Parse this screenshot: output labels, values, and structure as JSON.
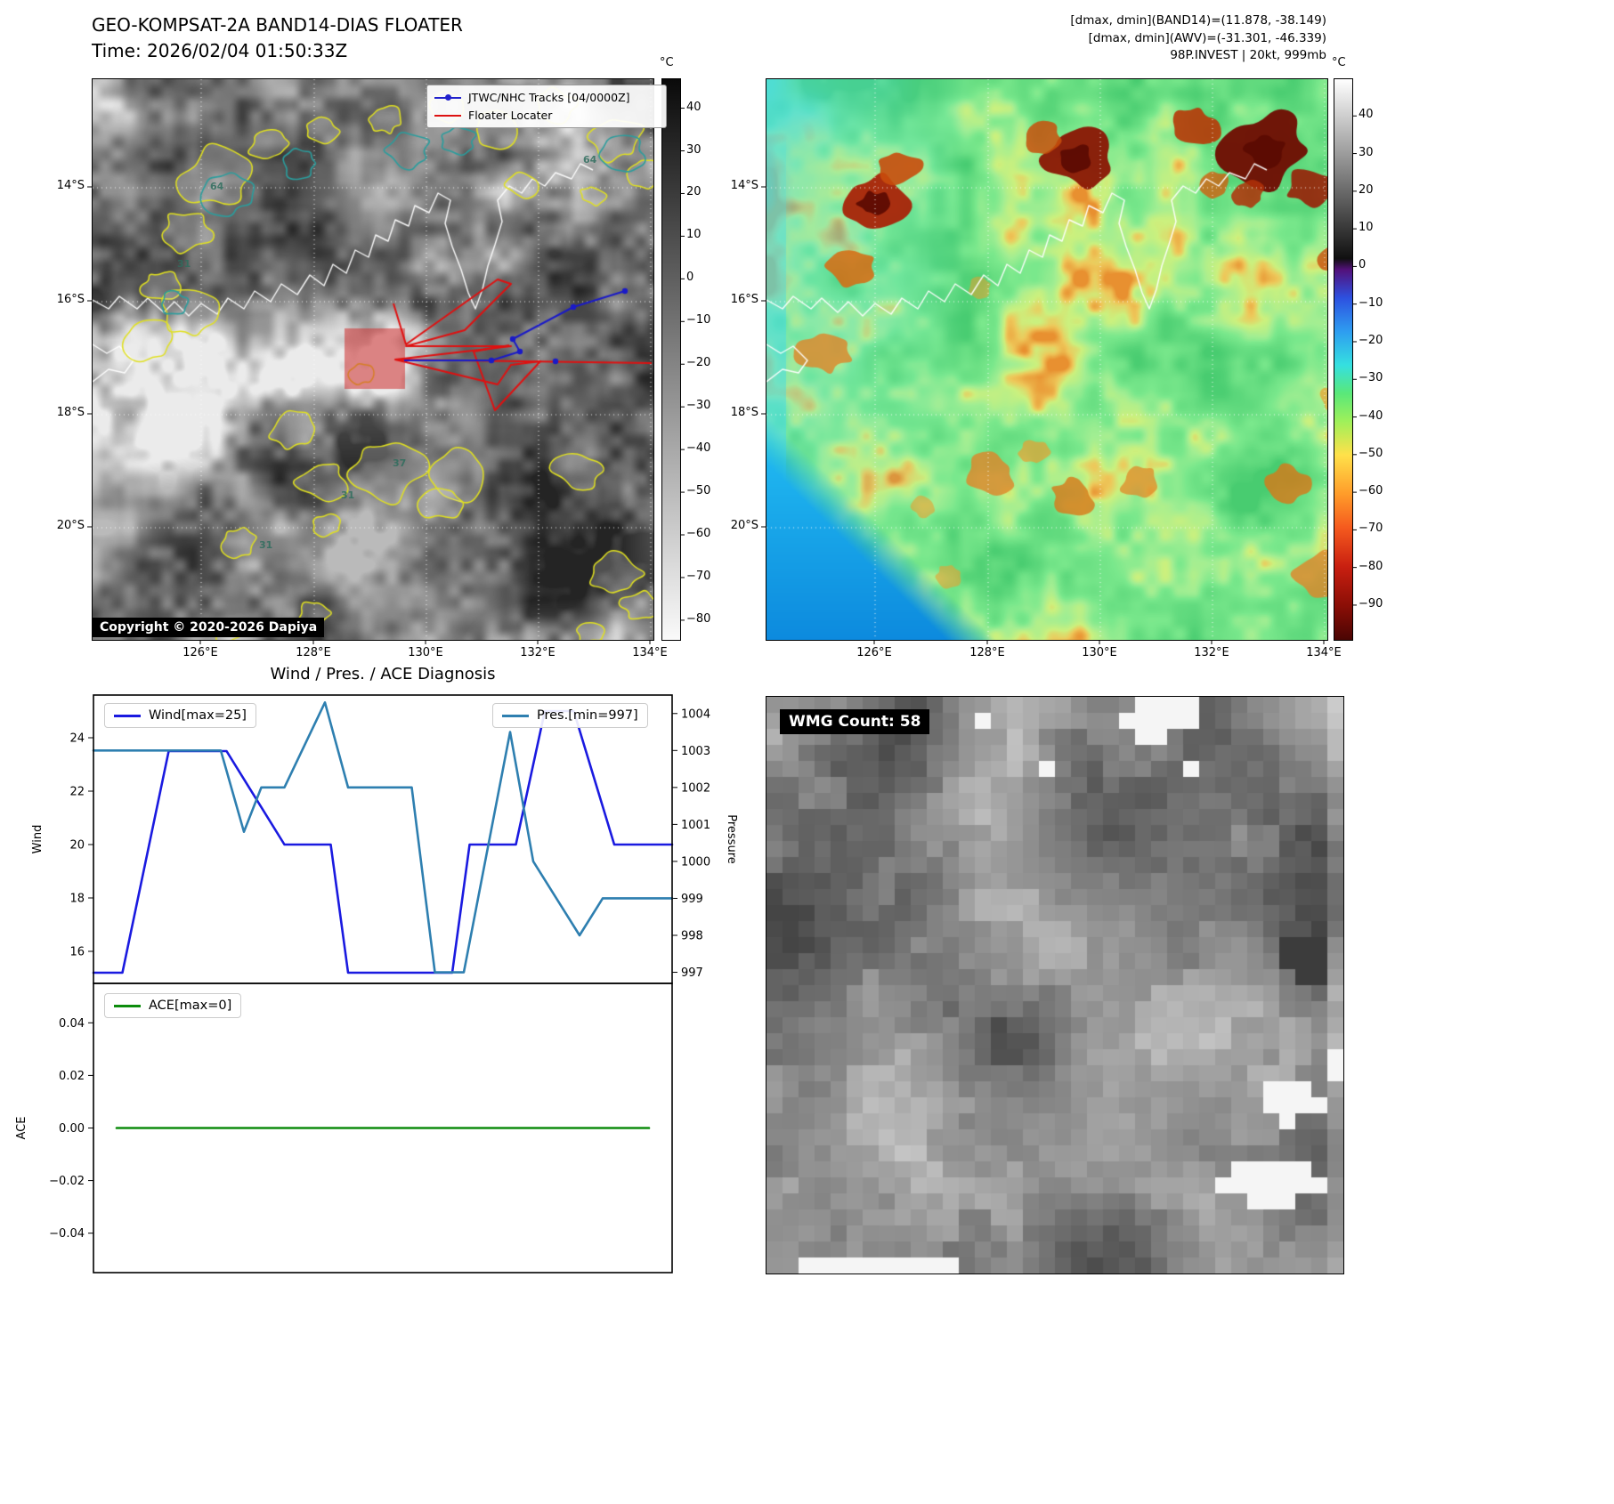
{
  "band14": {
    "title": "GEO-KOMPSAT-2A BAND14-DIAS FLOATER",
    "time_line": "Time: 2026/02/04 01:50:33Z",
    "legend": {
      "track": "JTWC/NHC Tracks [04/0000Z]",
      "track_color": "#2222cc",
      "floater": "Floater Locater",
      "floater_color": "#dd1111"
    },
    "copyright": "Copyright © 2020-2026 Dapiya",
    "colorbar": {
      "unit": "°C",
      "ticks": [
        40,
        30,
        20,
        10,
        0,
        -10,
        -20,
        -30,
        -40,
        -50,
        -60,
        -70,
        -80
      ]
    },
    "lat_ticks": [
      "14°S",
      "16°S",
      "18°S",
      "20°S"
    ],
    "lon_ticks": [
      "126°E",
      "128°E",
      "130°E",
      "132°E",
      "134°E"
    ],
    "contour_labels": [
      "64",
      "64",
      "31",
      "37",
      "31",
      "31"
    ]
  },
  "awv": {
    "header": [
      "[dmax, dmin](BAND14)=(11.878, -38.149)",
      "[dmax, dmin](AWV)=(-31.301, -46.339)",
      "98P.INVEST | 20kt, 999mb"
    ],
    "colorbar": {
      "unit": "°C",
      "ticks": [
        40,
        30,
        20,
        10,
        0,
        -10,
        -20,
        -30,
        -40,
        -50,
        -60,
        -70,
        -80,
        -90
      ]
    },
    "lat_ticks": [
      "14°S",
      "16°S",
      "18°S",
      "20°S"
    ],
    "lon_ticks": [
      "126°E",
      "128°E",
      "130°E",
      "132°E",
      "134°E"
    ]
  },
  "diagnosis": {
    "title": "Wind / Pres. / ACE Diagnosis"
  },
  "wmg": {
    "label": "WMG Count: 58"
  },
  "chart_data": [
    {
      "type": "line",
      "title": "Wind / Pres. / ACE Diagnosis",
      "series": [
        {
          "name": "Wind[max=25]",
          "color": "#1a1ae0",
          "axis": "left",
          "x": [
            0,
            5,
            13,
            23,
            33,
            41,
            44,
            62,
            65,
            73,
            78,
            83,
            90,
            100
          ],
          "y": [
            15.2,
            15.2,
            23.5,
            23.5,
            20,
            20,
            15.2,
            15.2,
            20,
            20,
            25,
            25,
            20,
            20
          ]
        },
        {
          "name": "Pres.[min=997]",
          "color": "#2e7fb0",
          "axis": "right",
          "x": [
            0,
            22,
            26,
            29,
            33,
            40,
            44,
            55,
            59,
            64,
            72,
            76,
            84,
            88,
            100
          ],
          "y": [
            1003,
            1003,
            1000.8,
            1002,
            1002,
            1004.3,
            1002,
            1002,
            997,
            997,
            1003.5,
            1000,
            998,
            999,
            999
          ]
        }
      ],
      "left_axis": {
        "label": "Wind",
        "ticks": [
          16,
          18,
          20,
          22,
          24
        ],
        "range": [
          14.8,
          25.6
        ]
      },
      "right_axis": {
        "label": "Pressure",
        "ticks": [
          997,
          998,
          999,
          1000,
          1001,
          1002,
          1003,
          1004
        ],
        "range": [
          996.7,
          1004.5
        ]
      },
      "x_range": [
        0,
        100
      ]
    },
    {
      "type": "line",
      "series": [
        {
          "name": "ACE[max=0]",
          "color": "#0d8c0d",
          "axis": "left",
          "x": [
            4,
            96
          ],
          "y": [
            0,
            0
          ]
        }
      ],
      "left_axis": {
        "label": "ACE",
        "ticks": [
          -0.04,
          -0.02,
          0,
          0.02,
          0.04
        ],
        "range": [
          -0.055,
          0.055
        ]
      },
      "x_range": [
        0,
        100
      ]
    }
  ]
}
